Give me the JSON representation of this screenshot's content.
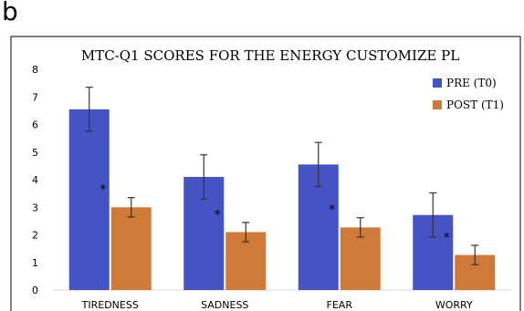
{
  "panel_label": "b",
  "chart_data": {
    "type": "bar",
    "title": "MTC-Q1 SCORES FOR THE ENERGY CUSTOMIZE PL",
    "xlabel": "",
    "ylabel": "",
    "ylim": [
      0,
      8
    ],
    "yticks": [
      0,
      1,
      2,
      3,
      4,
      5,
      6,
      7,
      8
    ],
    "categories": [
      "TIREDNESS",
      "SADNESS",
      "FEAR",
      "WORRY"
    ],
    "series": [
      {
        "name": "PRE (T0)",
        "color": "#4653c5",
        "values": [
          6.55,
          4.1,
          4.55,
          2.72
        ],
        "errors": [
          0.8,
          0.8,
          0.8,
          0.8
        ]
      },
      {
        "name": "POST (T1)",
        "color": "#d07a3a",
        "values": [
          3.0,
          2.1,
          2.27,
          1.27
        ],
        "errors": [
          0.35,
          0.35,
          0.35,
          0.35
        ]
      }
    ],
    "annotations": [
      "*",
      "*",
      "*",
      "*"
    ],
    "legend_position": "top-right",
    "grid": false
  }
}
